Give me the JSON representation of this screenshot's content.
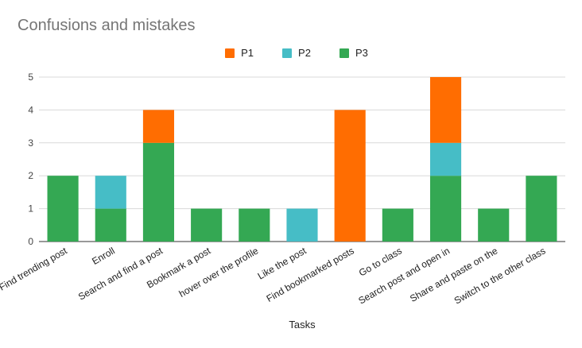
{
  "chart_data": {
    "type": "bar",
    "stacked": true,
    "title": "Confusions and mistakes",
    "xlabel": "Tasks",
    "ylabel": "",
    "ylim": [
      0,
      5
    ],
    "yticks": [
      0,
      1,
      2,
      3,
      4,
      5
    ],
    "grid": true,
    "legend_position": "top",
    "categories": [
      "Find trending post",
      "Enroll",
      "Search and find a post",
      "Bookmark a post",
      "hover over the profile",
      "Like the post",
      "Find bookmarked posts",
      "Go to class",
      "Search post and open in",
      "Share and paste on the",
      "Switch to the other class"
    ],
    "series": [
      {
        "name": "P3",
        "color": "#34a853",
        "values": [
          2,
          1,
          3,
          1,
          1,
          0,
          0,
          1,
          2,
          1,
          2
        ]
      },
      {
        "name": "P2",
        "color": "#46bdc6",
        "values": [
          0,
          1,
          0,
          0,
          0,
          1,
          0,
          0,
          1,
          0,
          0
        ]
      },
      {
        "name": "P1",
        "color": "#ff6d01",
        "values": [
          0,
          0,
          1,
          0,
          0,
          0,
          4,
          0,
          2,
          0,
          0
        ]
      }
    ],
    "legend_order": [
      "P1",
      "P2",
      "P3"
    ]
  }
}
